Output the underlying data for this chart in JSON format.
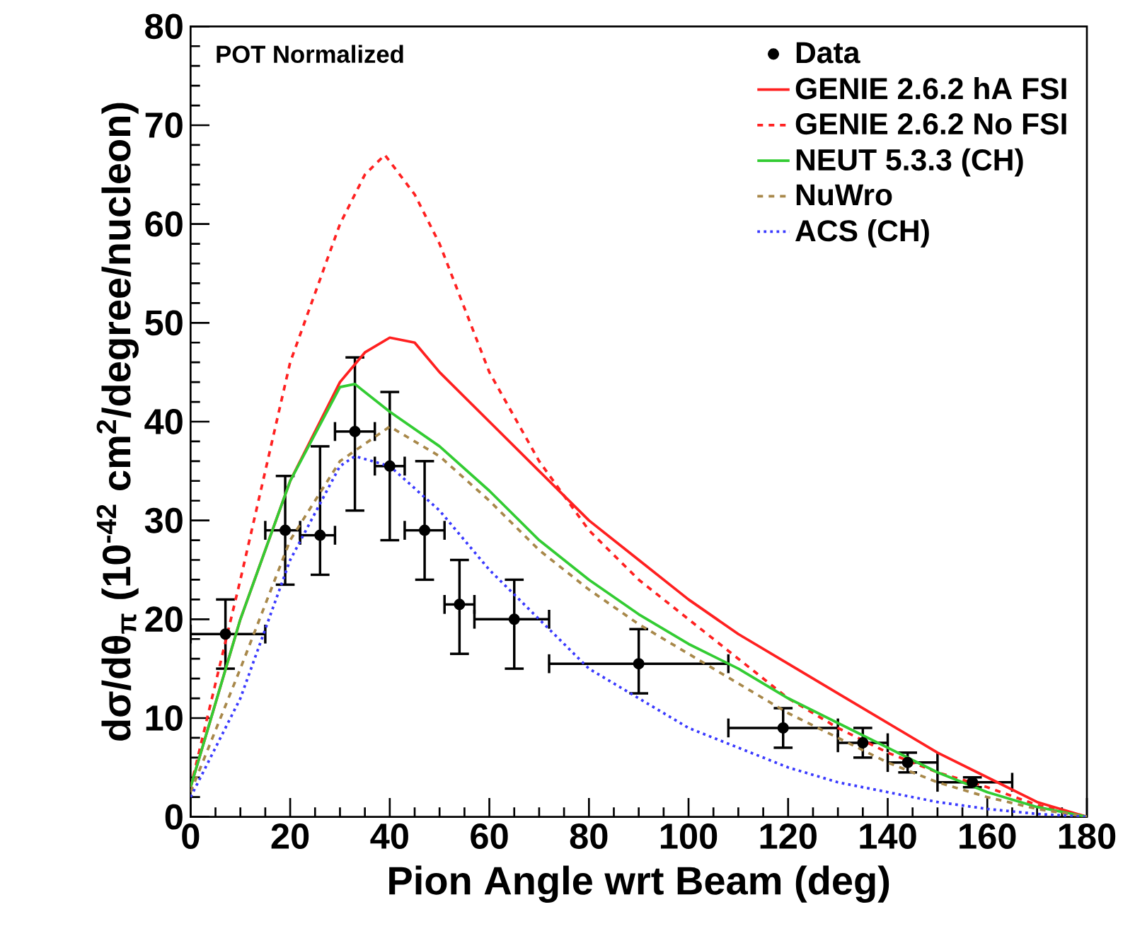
{
  "chart_data": {
    "type": "line",
    "xlabel": "Pion Angle wrt Beam (deg)",
    "ylabel": "dσ/dθ$_{π}$ (10$^{-42}$ cm$^{2}$/degree/nucleon)",
    "xlim": [
      0,
      180
    ],
    "ylim": [
      0,
      80
    ],
    "xticks": [
      0,
      20,
      40,
      60,
      80,
      100,
      120,
      140,
      160,
      180
    ],
    "yticks": [
      0,
      10,
      20,
      30,
      40,
      50,
      60,
      70,
      80
    ],
    "legend": "top right",
    "grid": false,
    "annotations": [
      "POT Normalized"
    ],
    "series": [
      {
        "name": "Data",
        "type": "scatter",
        "color": "#000000",
        "x": [
          7,
          19,
          26,
          33,
          40,
          47,
          54,
          65,
          90,
          119,
          135,
          144,
          157
        ],
        "values": [
          18.5,
          29,
          28.5,
          39,
          35.5,
          29,
          21.5,
          20,
          15.5,
          9,
          7.5,
          5.5,
          3.5
        ],
        "errors": [
          [
            15,
            22
          ],
          [
            23.5,
            34.5
          ],
          [
            24.5,
            37.5
          ],
          [
            31,
            46.5
          ],
          [
            28,
            43
          ],
          [
            24,
            36
          ],
          [
            16.5,
            26
          ],
          [
            15,
            24
          ],
          [
            12.5,
            19
          ],
          [
            7,
            11
          ],
          [
            6,
            9
          ],
          [
            4.5,
            6.5
          ],
          [
            3,
            4
          ]
        ],
        "xerrors": [
          [
            0,
            15
          ],
          [
            15,
            22
          ],
          [
            22,
            29
          ],
          [
            29,
            37
          ],
          [
            37,
            43
          ],
          [
            43,
            51
          ],
          [
            51,
            57
          ],
          [
            57,
            72
          ],
          [
            72,
            108
          ],
          [
            108,
            130
          ],
          [
            130,
            140
          ],
          [
            140,
            150
          ],
          [
            150,
            165
          ]
        ]
      },
      {
        "name": "GENIE 2.6.2 hA FSI",
        "line_style": "solid",
        "color": "#ff2020",
        "x": [
          0,
          10,
          20,
          30,
          35,
          40,
          45,
          50,
          60,
          70,
          80,
          90,
          100,
          110,
          120,
          130,
          140,
          150,
          160,
          170,
          180
        ],
        "values": [
          3,
          20,
          34,
          44,
          47,
          48.5,
          48,
          45,
          40,
          35,
          30,
          26,
          22,
          18.5,
          15.5,
          12.5,
          9.5,
          6.5,
          4,
          1.5,
          0
        ]
      },
      {
        "name": "GENIE 2.6.2 No FSI",
        "line_style": "dashed",
        "color": "#ff2020",
        "x": [
          0,
          10,
          20,
          30,
          35,
          39,
          45,
          50,
          60,
          70,
          80,
          90,
          100,
          110,
          120,
          130,
          140,
          150,
          160,
          170,
          180
        ],
        "values": [
          3,
          24,
          46,
          60,
          65,
          67,
          63,
          58,
          45,
          36,
          29,
          24,
          20,
          16,
          12,
          9,
          6.5,
          4.5,
          3,
          1.2,
          0
        ]
      },
      {
        "name": "NEUT 5.3.3 (CH)",
        "line_style": "solid",
        "color": "#33cc33",
        "x": [
          0,
          10,
          20,
          30,
          33,
          40,
          50,
          60,
          70,
          80,
          90,
          100,
          110,
          120,
          130,
          140,
          150,
          160,
          170,
          180
        ],
        "values": [
          3,
          20,
          34,
          43.5,
          43.8,
          41,
          37.5,
          33,
          28,
          24,
          20.5,
          17.5,
          15,
          12,
          9.5,
          7,
          4.5,
          2.5,
          1,
          0
        ]
      },
      {
        "name": "NuWro",
        "line_style": "dashed",
        "color": "#a8884a",
        "x": [
          0,
          10,
          20,
          30,
          40,
          50,
          60,
          70,
          80,
          90,
          100,
          110,
          120,
          130,
          140,
          150,
          160,
          170,
          180
        ],
        "values": [
          2.5,
          15,
          28,
          36,
          39.5,
          36.5,
          32,
          27,
          23,
          19.5,
          16.5,
          13.5,
          10.5,
          8,
          5.5,
          3.5,
          2,
          0.8,
          0
        ]
      },
      {
        "name": "ACS (CH)",
        "line_style": "dotted",
        "color": "#3a3aff",
        "x": [
          0,
          10,
          20,
          30,
          33,
          40,
          50,
          60,
          70,
          80,
          90,
          100,
          110,
          120,
          130,
          140,
          150,
          160,
          170,
          180
        ],
        "values": [
          2,
          12,
          26,
          35.5,
          36.5,
          35.5,
          31,
          25,
          20,
          15,
          12,
          9,
          7,
          5,
          3.5,
          2.5,
          1.5,
          0.8,
          0.3,
          0
        ]
      }
    ]
  }
}
